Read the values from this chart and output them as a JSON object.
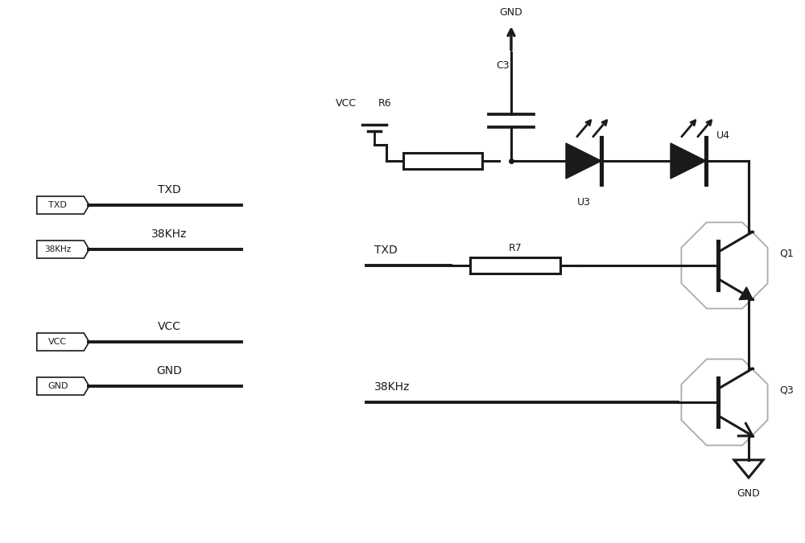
{
  "bg_color": "#ffffff",
  "line_color": "#1a1a1a",
  "light_line_color": "#aaaaaa",
  "fig_width": 10.0,
  "fig_height": 6.75,
  "labels": {
    "TXD_pin": "TXD",
    "38KHz_pin": "38KHz",
    "VCC_pin": "VCC",
    "GND_pin": "GND",
    "TXD_net": "TXD",
    "38KHz_net": "38KHz",
    "VCC_net": "VCC",
    "GND_net": "GND",
    "R6": "R6",
    "R7": "R7",
    "C3": "C3",
    "U3": "U3",
    "U4": "U4",
    "Q1": "Q1",
    "Q3": "Q3",
    "GND_top": "GND",
    "GND_bot": "GND",
    "VCC_label": "VCC"
  }
}
